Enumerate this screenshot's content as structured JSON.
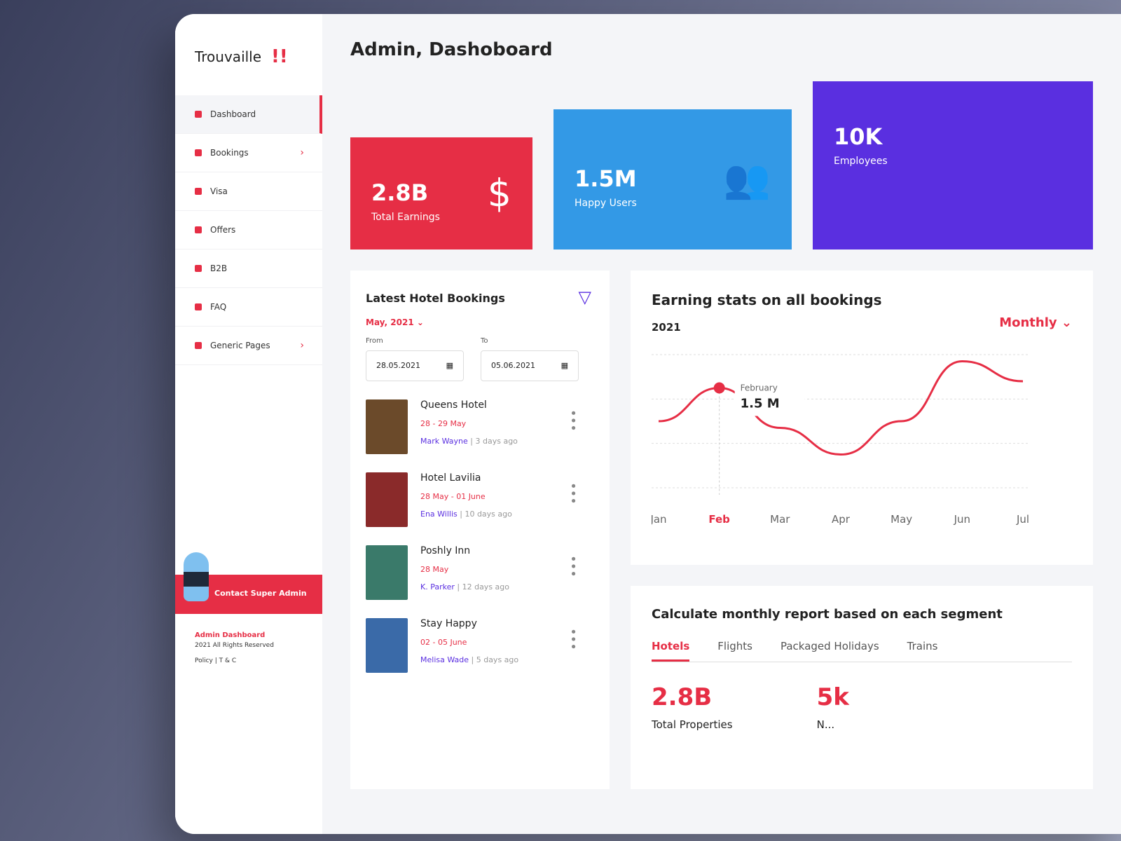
{
  "brand": {
    "name": "Trouvaille",
    "accent": "#e62e45"
  },
  "sidebar": {
    "items": [
      {
        "label": "Dashboard",
        "active": true
      },
      {
        "label": "Bookings",
        "chevron": true
      },
      {
        "label": "Visa"
      },
      {
        "label": "Offers"
      },
      {
        "label": "B2B"
      },
      {
        "label": "FAQ"
      },
      {
        "label": "Generic Pages",
        "chevron": true
      }
    ],
    "contact": "Contact Super Admin",
    "footer": {
      "title": "Admin Dashboard",
      "rights": "2021 All Rights Reserved",
      "links": "Policy  |  T & C"
    }
  },
  "header": {
    "title": "Admin, Dashoboard"
  },
  "cards": [
    {
      "value": "2.8B",
      "label": "Total Earnings",
      "color": "#e62e45",
      "icon": "coins-icon"
    },
    {
      "value": "1.5M",
      "label": "Happy Users",
      "color": "#3399e6",
      "icon": "users-icon"
    },
    {
      "value": "10K",
      "label": "Employees",
      "color": "#5a2fe0",
      "icon": "employees-icon"
    }
  ],
  "bookings": {
    "title": "Latest Hotel Bookings",
    "month": "May, 2021",
    "from_label": "From",
    "to_label": "To",
    "from": "28.05.2021",
    "to": "05.06.2021",
    "items": [
      {
        "name": "Queens Hotel",
        "dates": "28 - 29 May",
        "user": "Mark Wayne",
        "ago": "3 days ago"
      },
      {
        "name": "Hotel Lavilia",
        "dates": "28 May - 01 June",
        "user": "Ena Willis",
        "ago": "10 days ago"
      },
      {
        "name": "Poshly Inn",
        "dates": "28 May",
        "user": "K. Parker",
        "ago": "12 days ago"
      },
      {
        "name": "Stay Happy",
        "dates": "02 - 05 June",
        "user": "Melisa Wade",
        "ago": "5 days ago"
      }
    ]
  },
  "chart_data": {
    "type": "line",
    "title": "Earning stats on all bookings",
    "subtitle": "2021",
    "period": "Monthly",
    "categories": [
      "Jan",
      "Feb",
      "Mar",
      "Apr",
      "May",
      "Jun",
      "Jul"
    ],
    "values": [
      1.0,
      1.5,
      0.9,
      0.5,
      1.0,
      1.9,
      1.6
    ],
    "highlight": {
      "label": "February",
      "value": "1.5 M",
      "index": 1
    },
    "grid": true,
    "color": "#e62e45"
  },
  "report": {
    "title": "Calculate monthly report based on each segment",
    "tabs": [
      "Hotels",
      "Flights",
      "Packaged Holidays",
      "Trains"
    ],
    "stats": [
      {
        "value": "2.8B",
        "label": "Total Properties"
      },
      {
        "value": "5k",
        "label": "N..."
      }
    ]
  }
}
